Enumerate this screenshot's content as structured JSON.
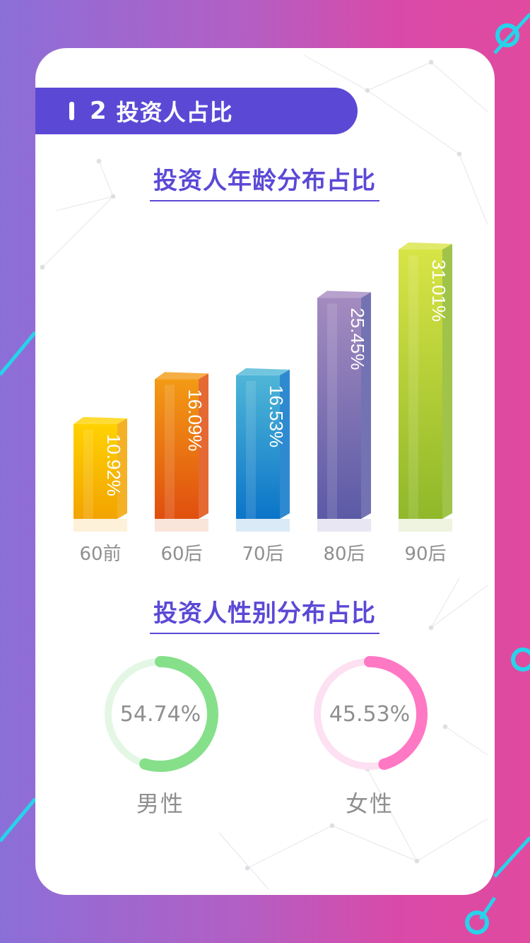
{
  "section": {
    "number": "2",
    "title": "投资人占比"
  },
  "age_title": "投资人年龄分布占比",
  "gender_title": "投资人性别分布占比",
  "chart_data": [
    {
      "type": "bar",
      "title": "投资人年龄分布占比",
      "categories": [
        "60前",
        "60后",
        "70后",
        "80后",
        "90后"
      ],
      "values": [
        10.92,
        16.09,
        16.53,
        25.45,
        31.01
      ],
      "value_labels": [
        "10.92%",
        "16.09%",
        "16.53%",
        "25.45%",
        "31.01%"
      ],
      "unit": "%",
      "ylim": [
        0,
        35
      ],
      "grid": false,
      "colors": [
        [
          "#ffd200",
          "#f2a300"
        ],
        [
          "#f39a14",
          "#e04f0f"
        ],
        [
          "#4fb6d7",
          "#0b74c8"
        ],
        [
          "#a48bc0",
          "#5b5aa6"
        ],
        [
          "#d8e445",
          "#8fb82a"
        ]
      ]
    },
    {
      "type": "pie",
      "title": "投资人性别分布占比",
      "categories": [
        "男性",
        "女性"
      ],
      "values": [
        54.74,
        45.53
      ],
      "value_labels": [
        "54.74%",
        "45.53%"
      ],
      "colors": [
        "#86e08a",
        "#ff78c4"
      ],
      "track_colors": [
        "#e3f7e4",
        "#fde0f1"
      ]
    }
  ]
}
